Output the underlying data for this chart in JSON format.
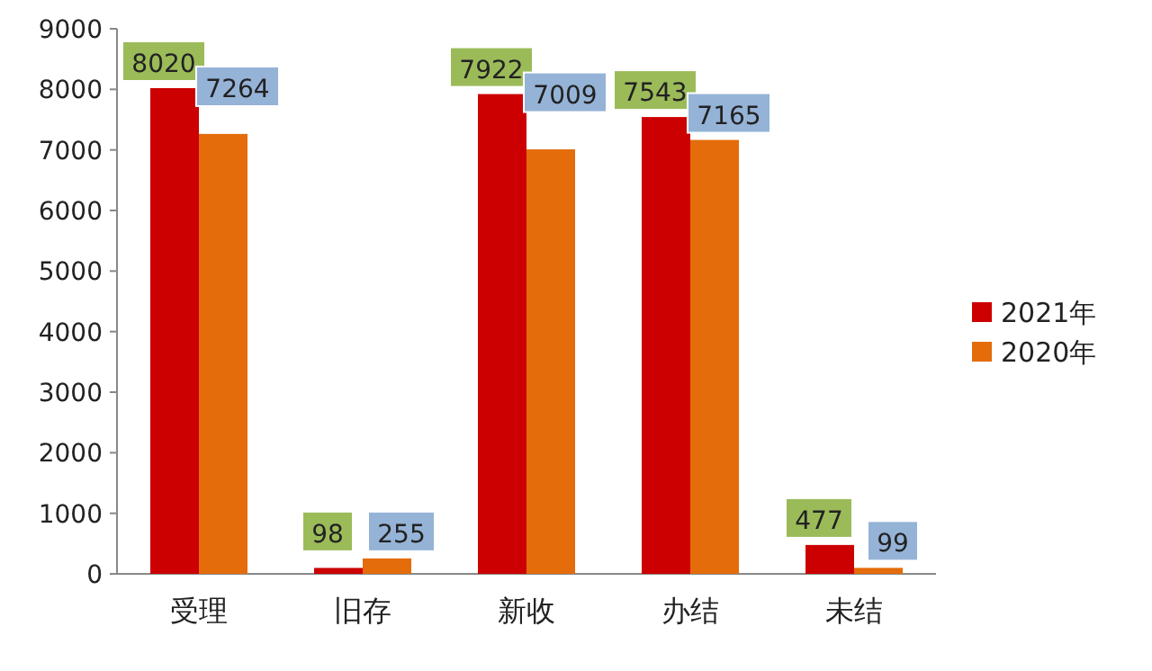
{
  "chart_data": {
    "type": "bar",
    "categories": [
      "受理",
      "旧存",
      "新收",
      "办结",
      "未结"
    ],
    "series": [
      {
        "name": "2021年",
        "color": "#cc0000",
        "values": [
          8020,
          98,
          7922,
          7543,
          477
        ]
      },
      {
        "name": "2020年",
        "color": "#e46c0a",
        "values": [
          7264,
          255,
          7009,
          7165,
          99
        ]
      }
    ],
    "ylim": [
      0,
      9000
    ],
    "yticks": [
      0,
      1000,
      2000,
      3000,
      4000,
      5000,
      6000,
      7000,
      8000,
      9000
    ],
    "data_labels": true,
    "legend": "right"
  }
}
